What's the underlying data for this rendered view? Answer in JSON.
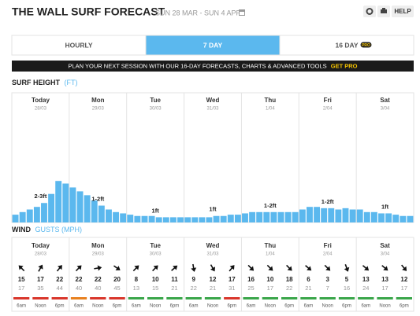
{
  "header": {
    "title": "THE WALL SURF FORECAST",
    "dates": "SUN 28 MAR - SUN 4 APR",
    "help": "HELP"
  },
  "tabs": [
    {
      "label": "HOURLY"
    },
    {
      "label": "7 DAY",
      "active": true
    },
    {
      "label": "16 DAY",
      "badge": "PRO"
    }
  ],
  "banner": {
    "text": "PLAN YOUR NEXT SESSION WITH OUR 16-DAY FORECASTS, CHARTS & ADVANCED TOOLS",
    "cta": "GET PRO"
  },
  "days": [
    {
      "name": "Today",
      "date": "28/03"
    },
    {
      "name": "Mon",
      "date": "29/03"
    },
    {
      "name": "Tue",
      "date": "30/03"
    },
    {
      "name": "Wed",
      "date": "31/03"
    },
    {
      "name": "Thu",
      "date": "1/04"
    },
    {
      "name": "Fri",
      "date": "2/04"
    },
    {
      "name": "Sat",
      "date": "3/04"
    }
  ],
  "surf": {
    "type": "bar",
    "title": "SURF HEIGHT",
    "unit": "(FT)",
    "color": "#5bb8ee",
    "ylim": [
      0,
      10
    ],
    "values": [
      0.6,
      0.8,
      1.0,
      1.2,
      1.5,
      2.2,
      3.2,
      3.0,
      2.7,
      2.4,
      2.1,
      1.7,
      1.3,
      1.0,
      0.8,
      0.7,
      0.6,
      0.5,
      0.5,
      0.5,
      0.4,
      0.4,
      0.4,
      0.4,
      0.4,
      0.4,
      0.4,
      0.4,
      0.5,
      0.5,
      0.6,
      0.6,
      0.7,
      0.8,
      0.8,
      0.8,
      0.8,
      0.8,
      0.8,
      0.8,
      1.0,
      1.2,
      1.2,
      1.1,
      1.1,
      1.0,
      1.1,
      1.0,
      1.0,
      0.8,
      0.8,
      0.7,
      0.7,
      0.6,
      0.5,
      0.5
    ],
    "day_labels": [
      "2-3ft",
      "1-2ft",
      "1ft",
      "1ft",
      "1-2ft",
      "1-2ft",
      "1ft"
    ]
  },
  "wind": {
    "title": "WIND",
    "unit": "GUSTS (MPH)",
    "times": [
      "6am",
      "Noon",
      "6pm"
    ],
    "speeds": [
      15,
      17,
      22,
      22,
      22,
      20,
      8,
      10,
      11,
      9,
      12,
      17,
      16,
      10,
      18,
      6,
      3,
      5,
      13,
      13,
      12
    ],
    "gusts": [
      17,
      35,
      44,
      40,
      40,
      45,
      13,
      15,
      21,
      22,
      21,
      31,
      25,
      17,
      22,
      21,
      7,
      16,
      24,
      17,
      17
    ],
    "directions": [
      -45,
      30,
      40,
      45,
      80,
      125,
      45,
      45,
      50,
      170,
      150,
      40,
      135,
      135,
      135,
      130,
      135,
      160,
      130,
      130,
      140
    ],
    "ratings": [
      "#d9362b",
      "#d9362b",
      "#d9362b",
      "#e8811f",
      "#d9362b",
      "#d9362b",
      "#3aa64a",
      "#3aa64a",
      "#3aa64a",
      "#3aa64a",
      "#3aa64a",
      "#d9362b",
      "#3aa64a",
      "#3aa64a",
      "#3aa64a",
      "#3aa64a",
      "#3aa64a",
      "#3aa64a",
      "#3aa64a",
      "#3aa64a",
      "#3aa64a"
    ]
  }
}
